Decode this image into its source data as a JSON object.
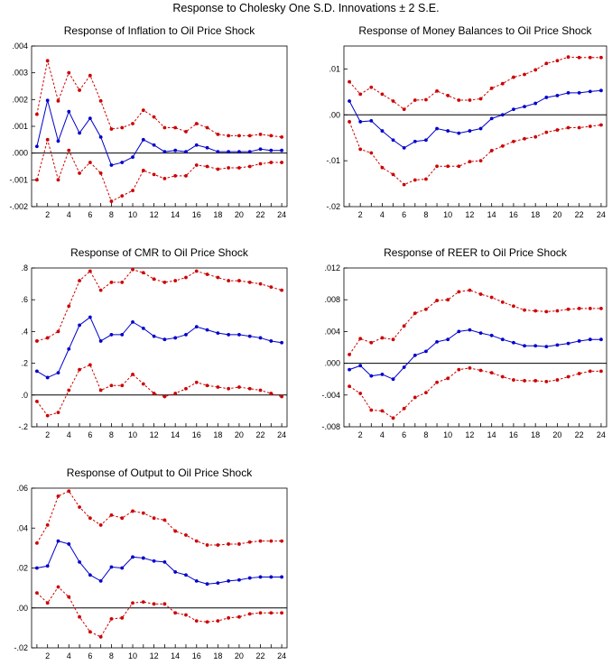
{
  "figure": {
    "title": "Response to Cholesky One S.D. Innovations ± 2 S.E."
  },
  "colors": {
    "response": "#0000cc",
    "band": "#cc0000",
    "zero": "#000000"
  },
  "chart_data": [
    {
      "type": "line",
      "title": "Response of Inflation to Oil Price Shock",
      "x": [
        1,
        2,
        3,
        4,
        5,
        6,
        7,
        8,
        9,
        10,
        11,
        12,
        13,
        14,
        15,
        16,
        17,
        18,
        19,
        20,
        21,
        22,
        23,
        24
      ],
      "xticks": [
        "2",
        "4",
        "6",
        "8",
        "10",
        "12",
        "14",
        "16",
        "18",
        "20",
        "22",
        "24"
      ],
      "ylim": [
        -0.002,
        0.004
      ],
      "yticks": [
        -0.002,
        -0.001,
        0.0,
        0.001,
        0.002,
        0.003,
        0.004
      ],
      "ytick_labels": [
        "-.002",
        "-.001",
        ".000",
        ".001",
        ".002",
        ".003",
        ".004"
      ],
      "series": [
        {
          "role": "response",
          "values": [
            0.00025,
            0.00197,
            0.00045,
            0.00155,
            0.00075,
            0.0013,
            0.0006,
            -0.00045,
            -0.00035,
            -0.00015,
            0.0005,
            0.0003,
            5e-05,
            0.0001,
            5e-05,
            0.0003,
            0.0002,
            5e-05,
            5e-05,
            5e-05,
            5e-05,
            0.00015,
            0.0001,
            0.0001
          ]
        },
        {
          "role": "upper",
          "values": [
            0.00145,
            0.00345,
            0.00195,
            0.003,
            0.00235,
            0.0029,
            0.00195,
            0.0009,
            0.00095,
            0.0011,
            0.0016,
            0.00135,
            0.00095,
            0.00095,
            0.0008,
            0.0011,
            0.00095,
            0.0007,
            0.00065,
            0.00065,
            0.00065,
            0.0007,
            0.00065,
            0.0006
          ]
        },
        {
          "role": "lower",
          "values": [
            -0.001,
            0.0005,
            -0.001,
            0.0001,
            -0.00075,
            -0.00035,
            -0.00075,
            -0.0018,
            -0.0016,
            -0.0014,
            -0.00065,
            -0.0008,
            -0.00095,
            -0.00085,
            -0.00085,
            -0.00045,
            -0.0005,
            -0.0006,
            -0.00055,
            -0.00055,
            -0.0005,
            -0.0004,
            -0.00035,
            -0.00035
          ]
        }
      ]
    },
    {
      "type": "line",
      "title": "Response of Money Balances to Oil Price Shock",
      "x": [
        1,
        2,
        3,
        4,
        5,
        6,
        7,
        8,
        9,
        10,
        11,
        12,
        13,
        14,
        15,
        16,
        17,
        18,
        19,
        20,
        21,
        22,
        23,
        24
      ],
      "xticks": [
        "2",
        "4",
        "6",
        "8",
        "10",
        "12",
        "14",
        "16",
        "18",
        "20",
        "22",
        "24"
      ],
      "ylim": [
        -0.02,
        0.015
      ],
      "yticks": [
        -0.02,
        -0.01,
        0.0,
        0.01
      ],
      "ytick_labels": [
        "-.02",
        "-.01",
        ".00",
        ".01"
      ],
      "series": [
        {
          "role": "response",
          "values": [
            0.003,
            -0.0015,
            -0.0013,
            -0.0035,
            -0.0055,
            -0.0072,
            -0.0058,
            -0.0055,
            -0.003,
            -0.0035,
            -0.004,
            -0.0035,
            -0.003,
            -0.0008,
            0.0,
            0.0012,
            0.0018,
            0.0025,
            0.0038,
            0.0042,
            0.0048,
            0.0048,
            0.0051,
            0.0053
          ]
        },
        {
          "role": "upper",
          "values": [
            0.0072,
            0.0045,
            0.006,
            0.0045,
            0.003,
            0.0012,
            0.0032,
            0.0033,
            0.0052,
            0.0042,
            0.0032,
            0.0032,
            0.0035,
            0.0058,
            0.0068,
            0.0082,
            0.0088,
            0.0098,
            0.0112,
            0.0118,
            0.0126,
            0.0125,
            0.0125,
            0.0125
          ]
        },
        {
          "role": "lower",
          "values": [
            -0.0015,
            -0.0075,
            -0.0083,
            -0.0115,
            -0.013,
            -0.0152,
            -0.0142,
            -0.014,
            -0.0112,
            -0.0112,
            -0.0112,
            -0.0102,
            -0.01,
            -0.0078,
            -0.0068,
            -0.0058,
            -0.0052,
            -0.0048,
            -0.0038,
            -0.0033,
            -0.0028,
            -0.0028,
            -0.0025,
            -0.0022
          ]
        }
      ]
    },
    {
      "type": "line",
      "title": "Response of CMR to Oil Price Shock",
      "x": [
        1,
        2,
        3,
        4,
        5,
        6,
        7,
        8,
        9,
        10,
        11,
        12,
        13,
        14,
        15,
        16,
        17,
        18,
        19,
        20,
        21,
        22,
        23,
        24
      ],
      "xticks": [
        "2",
        "4",
        "6",
        "8",
        "10",
        "12",
        "14",
        "16",
        "18",
        "20",
        "22",
        "24"
      ],
      "ylim": [
        -0.2,
        0.8
      ],
      "yticks": [
        -0.2,
        0.0,
        0.2,
        0.4,
        0.6,
        0.8
      ],
      "ytick_labels": [
        "-.2",
        ".0",
        ".2",
        ".4",
        ".6",
        ".8"
      ],
      "series": [
        {
          "role": "response",
          "values": [
            0.15,
            0.11,
            0.14,
            0.29,
            0.44,
            0.49,
            0.34,
            0.38,
            0.38,
            0.46,
            0.42,
            0.37,
            0.35,
            0.36,
            0.38,
            0.43,
            0.41,
            0.39,
            0.38,
            0.38,
            0.37,
            0.36,
            0.34,
            0.33
          ]
        },
        {
          "role": "upper",
          "values": [
            0.34,
            0.36,
            0.4,
            0.56,
            0.72,
            0.78,
            0.66,
            0.71,
            0.71,
            0.79,
            0.77,
            0.73,
            0.71,
            0.72,
            0.74,
            0.78,
            0.76,
            0.74,
            0.72,
            0.72,
            0.71,
            0.7,
            0.68,
            0.66
          ]
        },
        {
          "role": "lower",
          "values": [
            -0.04,
            -0.13,
            -0.11,
            0.03,
            0.16,
            0.19,
            0.03,
            0.06,
            0.06,
            0.13,
            0.07,
            0.01,
            -0.01,
            0.01,
            0.04,
            0.08,
            0.06,
            0.05,
            0.04,
            0.05,
            0.04,
            0.03,
            0.01,
            -0.01
          ]
        }
      ]
    },
    {
      "type": "line",
      "title": "Response of REER to Oil Price Shock",
      "x": [
        1,
        2,
        3,
        4,
        5,
        6,
        7,
        8,
        9,
        10,
        11,
        12,
        13,
        14,
        15,
        16,
        17,
        18,
        19,
        20,
        21,
        22,
        23,
        24
      ],
      "xticks": [
        "2",
        "4",
        "6",
        "8",
        "10",
        "12",
        "14",
        "16",
        "18",
        "20",
        "22",
        "24"
      ],
      "ylim": [
        -0.008,
        0.012
      ],
      "yticks": [
        -0.008,
        -0.004,
        0.0,
        0.004,
        0.008,
        0.012
      ],
      "ytick_labels": [
        "-.008",
        "-.004",
        ".000",
        ".004",
        ".008",
        ".012"
      ],
      "series": [
        {
          "role": "response",
          "values": [
            -0.0008,
            -0.0003,
            -0.0016,
            -0.0014,
            -0.002,
            -0.0005,
            0.001,
            0.0015,
            0.0027,
            0.003,
            0.004,
            0.0042,
            0.0038,
            0.0035,
            0.003,
            0.0026,
            0.0022,
            0.0022,
            0.0021,
            0.0023,
            0.0025,
            0.0028,
            0.003,
            0.003
          ]
        },
        {
          "role": "upper",
          "values": [
            0.0011,
            0.0031,
            0.0026,
            0.0032,
            0.003,
            0.0047,
            0.0063,
            0.0068,
            0.0079,
            0.008,
            0.009,
            0.0092,
            0.0087,
            0.0083,
            0.0077,
            0.0072,
            0.0067,
            0.0066,
            0.0065,
            0.0066,
            0.0068,
            0.0069,
            0.0069,
            0.0069
          ]
        },
        {
          "role": "lower",
          "values": [
            -0.0029,
            -0.0038,
            -0.0059,
            -0.006,
            -0.0069,
            -0.0057,
            -0.0043,
            -0.0037,
            -0.0024,
            -0.0019,
            -0.0008,
            -0.0006,
            -0.0009,
            -0.0012,
            -0.0017,
            -0.0021,
            -0.0022,
            -0.0022,
            -0.0023,
            -0.0021,
            -0.0017,
            -0.0013,
            -0.001,
            -0.001
          ]
        }
      ]
    },
    {
      "type": "line",
      "title": "Response of Output to Oil Price Shock",
      "x": [
        1,
        2,
        3,
        4,
        5,
        6,
        7,
        8,
        9,
        10,
        11,
        12,
        13,
        14,
        15,
        16,
        17,
        18,
        19,
        20,
        21,
        22,
        23,
        24
      ],
      "xticks": [
        "2",
        "4",
        "6",
        "8",
        "10",
        "12",
        "14",
        "16",
        "18",
        "20",
        "22",
        "24"
      ],
      "ylim": [
        -0.02,
        0.06
      ],
      "yticks": [
        -0.02,
        0.0,
        0.02,
        0.04,
        0.06
      ],
      "ytick_labels": [
        "-.02",
        ".00",
        ".02",
        ".04",
        ".06"
      ],
      "series": [
        {
          "role": "response",
          "values": [
            0.02,
            0.021,
            0.0335,
            0.032,
            0.023,
            0.0165,
            0.0135,
            0.0205,
            0.02,
            0.0255,
            0.025,
            0.0235,
            0.023,
            0.018,
            0.0165,
            0.0135,
            0.012,
            0.0125,
            0.0135,
            0.014,
            0.015,
            0.0155,
            0.0155,
            0.0155
          ]
        },
        {
          "role": "upper",
          "values": [
            0.0325,
            0.0415,
            0.056,
            0.0585,
            0.0505,
            0.045,
            0.0415,
            0.0465,
            0.045,
            0.0485,
            0.0475,
            0.045,
            0.044,
            0.0385,
            0.0365,
            0.0335,
            0.0315,
            0.0315,
            0.032,
            0.032,
            0.033,
            0.0335,
            0.0335,
            0.0335
          ]
        },
        {
          "role": "lower",
          "values": [
            0.0075,
            0.0025,
            0.0105,
            0.0055,
            -0.0045,
            -0.012,
            -0.0145,
            -0.0055,
            -0.005,
            0.0025,
            0.003,
            0.002,
            0.002,
            -0.0025,
            -0.0035,
            -0.0065,
            -0.007,
            -0.0065,
            -0.005,
            -0.0045,
            -0.003,
            -0.0025,
            -0.0025,
            -0.0025
          ]
        }
      ]
    }
  ]
}
